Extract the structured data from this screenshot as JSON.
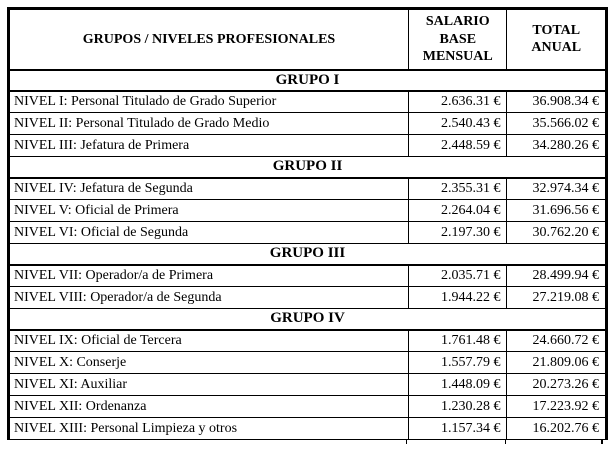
{
  "table": {
    "headers": {
      "col1": "GRUPOS / NIVELES PROFESIONALES",
      "col2": "SALARIO BASE MENSUAL",
      "col3": "TOTAL ANUAL"
    },
    "groups": [
      {
        "label": "GRUPO I",
        "rows": [
          {
            "level": "NIVEL I: Personal Titulado de Grado Superior",
            "salario_base_mensual": "2.636.31 €",
            "total_anual": "36.908.34 €"
          },
          {
            "level": "NIVEL II: Personal Titulado de Grado Medio",
            "salario_base_mensual": "2.540.43 €",
            "total_anual": "35.566.02 €"
          },
          {
            "level": "NIVEL III: Jefatura de Primera",
            "salario_base_mensual": "2.448.59 €",
            "total_anual": "34.280.26 €"
          }
        ]
      },
      {
        "label": "GRUPO II",
        "rows": [
          {
            "level": "NIVEL IV: Jefatura de Segunda",
            "salario_base_mensual": "2.355.31 €",
            "total_anual": "32.974.34 €"
          },
          {
            "level": "NIVEL V: Oficial de Primera",
            "salario_base_mensual": "2.264.04 €",
            "total_anual": "31.696.56 €"
          },
          {
            "level": "NIVEL VI: Oficial de Segunda",
            "salario_base_mensual": "2.197.30 €",
            "total_anual": "30.762.20 €"
          }
        ]
      },
      {
        "label": "GRUPO III",
        "rows": [
          {
            "level": "NIVEL VII: Operador/a de Primera",
            "salario_base_mensual": "2.035.71 €",
            "total_anual": "28.499.94 €"
          },
          {
            "level": "NIVEL VIII: Operador/a de Segunda",
            "salario_base_mensual": "1.944.22 €",
            "total_anual": "27.219.08 €"
          }
        ]
      },
      {
        "label": "GRUPO IV",
        "rows": [
          {
            "level": "NIVEL IX: Oficial de Tercera",
            "salario_base_mensual": "1.761.48 €",
            "total_anual": "24.660.72 €"
          },
          {
            "level": "NIVEL X: Conserje",
            "salario_base_mensual": "1.557.79 €",
            "total_anual": "21.809.06 €"
          },
          {
            "level": "NIVEL XI: Auxiliar",
            "salario_base_mensual": "1.448.09 €",
            "total_anual": "20.273.26 €"
          },
          {
            "level": "NIVEL XII: Ordenanza",
            "salario_base_mensual": "1.230.28 €",
            "total_anual": "17.223.92 €"
          },
          {
            "level": "NIVEL XIII: Personal Limpieza y otros",
            "salario_base_mensual": "1.157.34 €",
            "total_anual": "16.202.76 €"
          }
        ]
      }
    ]
  }
}
